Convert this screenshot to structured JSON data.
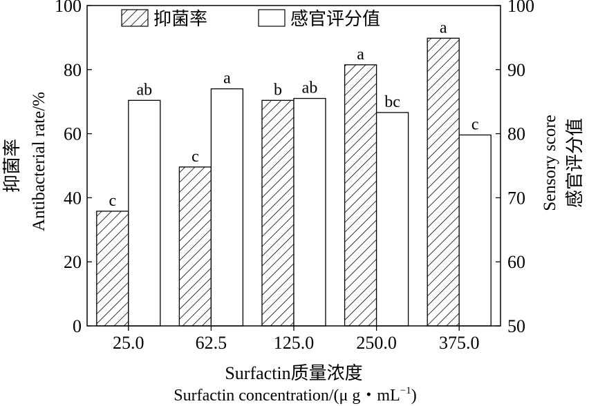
{
  "chart_data": {
    "type": "bar",
    "categories": [
      "25.0",
      "62.5",
      "125.0",
      "250.0",
      "375.0"
    ],
    "series": [
      {
        "name": "抑菌率",
        "axis": "left",
        "pattern": "hatched",
        "values": [
          35.8,
          49.6,
          70.4,
          81.5,
          89.8
        ],
        "letters": [
          "c",
          "c",
          "b",
          "a",
          "a"
        ]
      },
      {
        "name": "感官评分值",
        "axis": "right",
        "pattern": "open",
        "values": [
          85.2,
          87.0,
          85.5,
          83.3,
          79.8
        ],
        "letters": [
          "ab",
          "a",
          "ab",
          "bc",
          "c"
        ]
      }
    ],
    "y_left": {
      "label_cn": "抑菌率",
      "label_en": "Antibacterial rate/%",
      "ylim": [
        0,
        100
      ],
      "ticks": [
        "0",
        "20",
        "40",
        "60",
        "80",
        "100"
      ]
    },
    "y_right": {
      "label_cn": "感官评分值",
      "label_en": "Sensory score",
      "ylim": [
        50,
        100
      ],
      "ticks": [
        "50",
        "60",
        "70",
        "80",
        "90",
        "100"
      ]
    },
    "xlabel_cn": "Surfactin质量浓度",
    "xlabel_en": "Surfactin concentration/(μ g・mL",
    "xlabel_sup": "−1",
    "xlabel_close": ")",
    "legend": {
      "placement": "top-left"
    },
    "grid": false
  },
  "colors": {
    "ink": "#000000",
    "fill": "#ffffff"
  }
}
